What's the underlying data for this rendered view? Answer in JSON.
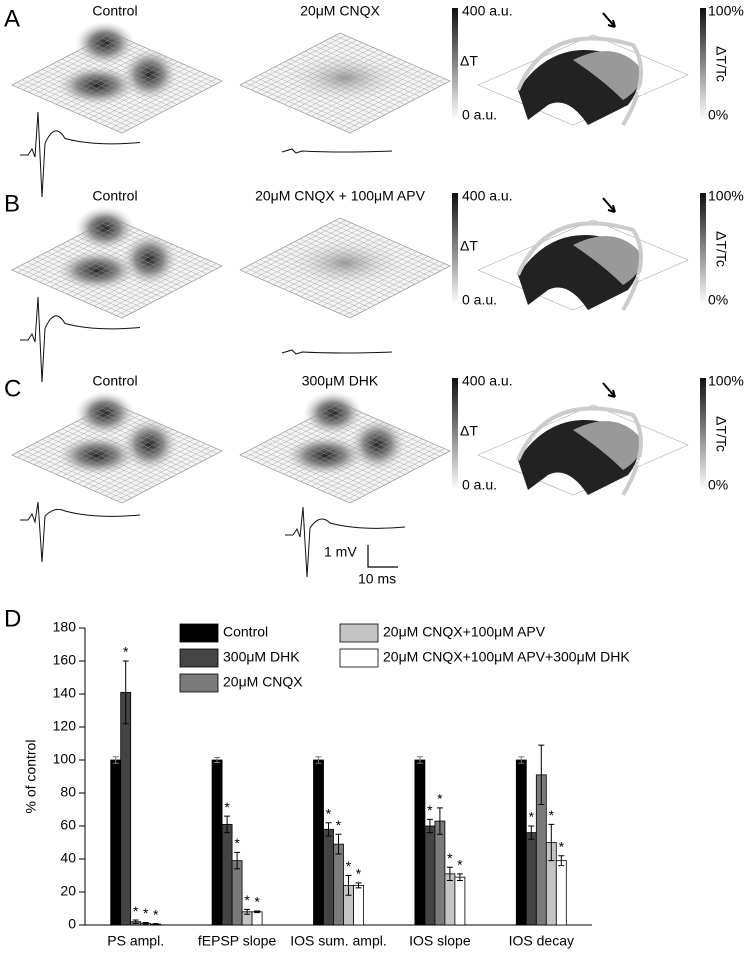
{
  "panels": [
    {
      "letter": "A",
      "left_title": "Control",
      "right_title": "20μM CNQX",
      "scale_top": "400 a.u.",
      "scale_label": "ΔT",
      "scale_bottom": "0 a.u.",
      "ratio_top": "100%",
      "ratio_label": "ΔT/Tc",
      "ratio_bottom": "0%"
    },
    {
      "letter": "B",
      "left_title": "Control",
      "right_title": "20μM CNQX + 100μM APV",
      "scale_top": "400 a.u.",
      "scale_label": "ΔT",
      "scale_bottom": "0 a.u.",
      "ratio_top": "100%",
      "ratio_label": "ΔT/Tc",
      "ratio_bottom": "0%"
    },
    {
      "letter": "C",
      "left_title": "Control",
      "right_title": "300μM DHK",
      "scale_top": "400 a.u.",
      "scale_label": "ΔT",
      "scale_bottom": "0 a.u.",
      "ratio_top": "100%",
      "ratio_label": "ΔT/Tc",
      "ratio_bottom": "0%"
    }
  ],
  "scale_bar": {
    "voltage": "1 mV",
    "time": "10 ms"
  },
  "chart_data": {
    "type": "bar",
    "panel_letter": "D",
    "ylabel": "% of control",
    "categories": [
      "PS ampl.",
      "fEPSP slope",
      "IOS sum. ampl.",
      "IOS slope",
      "IOS decay"
    ],
    "ylim": [
      0,
      180
    ],
    "yticks": [
      0,
      20,
      40,
      60,
      80,
      100,
      120,
      140,
      160,
      180
    ],
    "series": [
      {
        "name": "Control",
        "color": "#000000",
        "values": [
          100,
          100,
          100,
          100,
          100
        ],
        "errors": [
          2,
          1.5,
          2,
          2,
          2
        ]
      },
      {
        "name": "300μM DHK",
        "color": "#444444",
        "values": [
          141,
          61,
          58,
          60,
          56
        ],
        "errors": [
          19,
          5,
          4,
          4,
          4
        ],
        "stars": [
          "*",
          "*",
          "*",
          "*",
          "*"
        ]
      },
      {
        "name": "20μM CNQX",
        "color": "#7a7a7a",
        "values": [
          2,
          39,
          49,
          63,
          91
        ],
        "errors": [
          1,
          5,
          6,
          8,
          18
        ],
        "stars": [
          "*",
          "*",
          "*",
          "*",
          null
        ]
      },
      {
        "name": "20μM CNQX+100μM APV",
        "color": "#c4c4c4",
        "values": [
          1,
          8,
          24,
          31,
          50
        ],
        "errors": [
          0.5,
          1.5,
          6,
          4,
          11
        ],
        "stars": [
          "*",
          "*",
          "*",
          "*",
          "*"
        ]
      },
      {
        "name": "20μM CNQX+100μM APV+300μM DHK",
        "color": "#ffffff",
        "values": [
          0.5,
          8,
          24,
          29,
          39
        ],
        "errors": [
          0.3,
          0.5,
          1.5,
          2,
          3
        ],
        "stars": [
          "*",
          "*",
          "*",
          "*",
          "*"
        ]
      }
    ]
  }
}
